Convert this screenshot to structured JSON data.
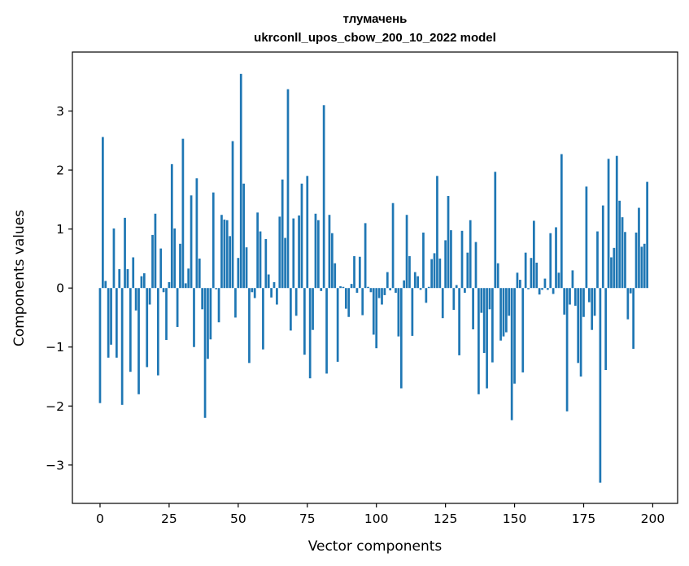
{
  "chart_data": {
    "type": "bar",
    "title_line1": "тлумачень",
    "title_line2": "ukrconll_upos_cbow_200_10_2022 model",
    "xlabel": "Vector components",
    "ylabel": "Components values",
    "xlim": [
      -10,
      209
    ],
    "ylim": [
      -3.65,
      4.0
    ],
    "xticks": [
      0,
      25,
      50,
      75,
      100,
      125,
      150,
      175,
      200
    ],
    "xtick_labels": [
      "0",
      "25",
      "50",
      "75",
      "100",
      "125",
      "150",
      "175",
      "200"
    ],
    "yticks": [
      -3,
      -2,
      -1,
      0,
      1,
      2,
      3
    ],
    "ytick_labels": [
      "−3",
      "−2",
      "−1",
      "0",
      "1",
      "2",
      "3"
    ],
    "bar_color": "#1f77b4",
    "values": [
      -1.95,
      2.56,
      0.12,
      -1.18,
      -0.96,
      1.01,
      -1.18,
      0.32,
      -1.98,
      1.19,
      0.32,
      -1.42,
      0.52,
      -0.38,
      -1.8,
      0.2,
      0.25,
      -1.34,
      -0.28,
      0.9,
      1.26,
      -1.48,
      0.67,
      -0.07,
      -0.88,
      0.1,
      2.1,
      1.01,
      -0.66,
      0.75,
      2.53,
      0.08,
      0.33,
      1.57,
      -1.0,
      1.86,
      0.5,
      -0.36,
      -2.2,
      -1.2,
      -0.87,
      1.62,
      -0.02,
      -0.58,
      1.24,
      1.16,
      1.15,
      0.88,
      2.49,
      -0.5,
      0.51,
      3.63,
      1.77,
      0.69,
      -1.27,
      -0.07,
      -0.17,
      1.28,
      0.96,
      -1.04,
      0.83,
      0.23,
      -0.16,
      0.1,
      -0.28,
      1.21,
      1.84,
      0.85,
      3.37,
      -0.72,
      1.18,
      -0.47,
      1.23,
      1.77,
      -1.13,
      1.9,
      -1.53,
      -0.71,
      1.26,
      1.15,
      -0.05,
      3.1,
      -1.45,
      1.24,
      0.93,
      0.42,
      -1.25,
      0.03,
      0.02,
      -0.35,
      -0.49,
      0.07,
      0.54,
      -0.08,
      0.53,
      -0.46,
      1.1,
      0.02,
      -0.07,
      -0.79,
      -1.02,
      -0.17,
      -0.28,
      -0.12,
      0.27,
      -0.04,
      1.44,
      -0.08,
      -0.82,
      -1.7,
      0.13,
      1.24,
      0.54,
      -0.81,
      0.27,
      0.2,
      -0.03,
      0.94,
      -0.25,
      0.02,
      0.49,
      0.59,
      1.9,
      0.5,
      -0.51,
      0.81,
      1.56,
      0.98,
      -0.37,
      0.05,
      -1.14,
      0.97,
      -0.08,
      0.6,
      1.15,
      -0.7,
      0.78,
      -1.8,
      -0.42,
      -1.1,
      -1.7,
      -0.36,
      -1.26,
      1.97,
      0.42,
      -0.89,
      -0.82,
      -0.75,
      -0.47,
      -2.24,
      -1.62,
      0.26,
      0.14,
      -1.43,
      0.6,
      -0.02,
      0.51,
      1.14,
      0.43,
      -0.11,
      -0.03,
      0.16,
      -0.03,
      0.93,
      -0.1,
      1.03,
      0.26,
      2.27,
      -0.45,
      -2.09,
      -0.28,
      0.3,
      -0.3,
      -1.27,
      -1.5,
      -0.49,
      1.72,
      -0.24,
      -0.71,
      -0.47,
      0.96,
      -3.3,
      1.4,
      -1.39,
      2.19,
      0.52,
      0.68,
      2.24,
      1.48,
      1.2,
      0.95,
      -0.53,
      -0.09,
      -1.03,
      0.94,
      1.36,
      0.7,
      0.75,
      1.8,
      0.0
    ]
  }
}
